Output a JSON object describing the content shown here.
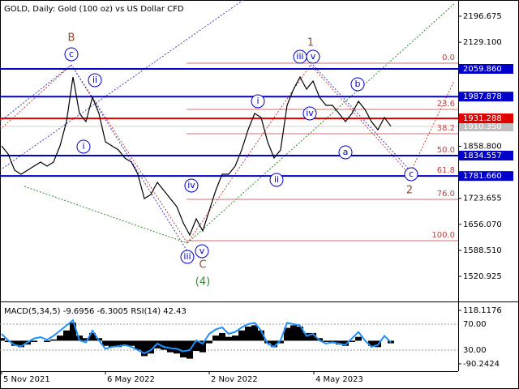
{
  "chart_data": [
    {
      "type": "line",
      "title": "GOLD, Daily:  Gold (100 oz) vs US Dollar CFD",
      "x": [
        2,
        10,
        18,
        26,
        34,
        42,
        50,
        58,
        66,
        74,
        82,
        90,
        98,
        106,
        114,
        122,
        130,
        138,
        146,
        154,
        162,
        170,
        178,
        186,
        194,
        202,
        210,
        218,
        226,
        234,
        242,
        250,
        258,
        266,
        274,
        282,
        290,
        298,
        306,
        314,
        322,
        330,
        338,
        346,
        354,
        362,
        370,
        378,
        386,
        394,
        402,
        410,
        418,
        426,
        434,
        442,
        450,
        458,
        466,
        474,
        482
      ],
      "series": [
        {
          "color": "#000000",
          "values": [
            1859.9,
            1838.8,
            1796.8,
            1786.2,
            1796.8,
            1807.3,
            1817.8,
            1807.3,
            1817.8,
            1859.9,
            1923.0,
            2038.8,
            1944.1,
            1923.0,
            1986.2,
            1944.1,
            1870.4,
            1859.9,
            1849.4,
            1828.3,
            1817.8,
            1786.2,
            1723.1,
            1733.6,
            1765.2,
            1744.1,
            1723.1,
            1702.0,
            1659.9,
            1628.3,
            1670.5,
            1638.9,
            1691.5,
            1744.1,
            1786.2,
            1786.2,
            1807.3,
            1849.4,
            1902.0,
            1944.1,
            1933.6,
            1870.4,
            1828.3,
            1849.4,
            1965.2,
            2007.2,
            2038.8,
            2007.2,
            2028.3,
            1986.2,
            1965.2,
            1965.2,
            1944.1,
            1923.0,
            1944.1,
            1975.7,
            1954.6,
            1923.0,
            1902.0,
            1933.6,
            1911.0
          ]
        }
      ],
      "xlim": [
        0,
        565
      ],
      "ylim": [
        1455.7,
        2238.8
      ],
      "yticks": [
        {
          "value": 2196.675,
          "label": "2196.675"
        },
        {
          "value": 2129.1,
          "label": "2129.100"
        },
        {
          "value": 1858.8,
          "label": "1858.800"
        },
        {
          "value": 1723.655,
          "label": "1723.655"
        },
        {
          "value": 1656.07,
          "label": "1656.070"
        },
        {
          "value": 1588.51,
          "label": "1588.510"
        },
        {
          "value": 1520.925,
          "label": "1520.925"
        }
      ],
      "levels": [
        {
          "value": 2059.86,
          "label": "2059.860",
          "color": "#0000c8"
        },
        {
          "value": 1987.878,
          "label": "1987.878",
          "color": "#0000c8"
        },
        {
          "value": 1931.288,
          "label": "1931.288",
          "color": "#e00000"
        },
        {
          "value": 1834.557,
          "label": "1834.557",
          "color": "#0000c8"
        },
        {
          "value": 1781.66,
          "label": "1781.660",
          "color": "#0000c8"
        }
      ],
      "current_price": {
        "value": 1910.35,
        "label": "1910.350",
        "color": "#c0c0c0"
      },
      "fib_levels": [
        {
          "label": "0.0",
          "price": 2074.6
        },
        {
          "label": "23.6",
          "price": 1954.6
        },
        {
          "label": "38.2",
          "price": 1891.5
        },
        {
          "label": "50.0",
          "price": 1834.6
        },
        {
          "label": "61.8",
          "price": 1781.7
        },
        {
          "label": "76.0",
          "price": 1720.9
        },
        {
          "label": "100.0",
          "price": 1613.6
        }
      ],
      "fib_color": "#c04040",
      "annotations": [
        {
          "text": "B",
          "x": 88,
          "y": 2139.9,
          "color": "#a0442c",
          "circle": false
        },
        {
          "text": "c",
          "x": 88,
          "y": 2097.8,
          "color": "#0000c8",
          "circle": true
        },
        {
          "text": "ii",
          "x": 117,
          "y": 2030.4,
          "color": "#0000c8",
          "circle": true
        },
        {
          "text": "i",
          "x": 103,
          "y": 1857.8,
          "color": "#0000c8",
          "circle": true
        },
        {
          "text": "iv",
          "x": 236,
          "y": 1756.8,
          "color": "#0000c8",
          "circle": true
        },
        {
          "text": "iii",
          "x": 231,
          "y": 1571.5,
          "color": "#0000c8",
          "circle": true
        },
        {
          "text": "v",
          "x": 249,
          "y": 1586.2,
          "color": "#0000c8",
          "circle": true
        },
        {
          "text": "C",
          "x": 250,
          "y": 1550.5,
          "color": "#a0442c",
          "circle": false
        },
        {
          "text": "(4)",
          "x": 250,
          "y": 1506.3,
          "color": "#2e8b2e",
          "circle": false
        },
        {
          "text": "1",
          "x": 383,
          "y": 2127.2,
          "color": "#a0442c",
          "circle": false
        },
        {
          "text": "iii",
          "x": 370,
          "y": 2091.4,
          "color": "#0000c8",
          "circle": true
        },
        {
          "text": "v",
          "x": 386,
          "y": 2091.4,
          "color": "#0000c8",
          "circle": true
        },
        {
          "text": "iv",
          "x": 382,
          "y": 1944.1,
          "color": "#0000c8",
          "circle": true
        },
        {
          "text": "i",
          "x": 318,
          "y": 1975.7,
          "color": "#0000c8",
          "circle": true
        },
        {
          "text": "ii",
          "x": 341,
          "y": 1771.5,
          "color": "#0000c8",
          "circle": true
        },
        {
          "text": "a",
          "x": 426,
          "y": 1843.1,
          "color": "#0000c8",
          "circle": true
        },
        {
          "text": "b",
          "x": 441,
          "y": 2019.9,
          "color": "#0000c8",
          "circle": true
        },
        {
          "text": "c",
          "x": 507,
          "y": 1786.2,
          "color": "#0000c8",
          "circle": true
        },
        {
          "text": "2",
          "x": 505,
          "y": 1744.1,
          "color": "#a0442c",
          "circle": false
        }
      ]
    },
    {
      "type": "macd",
      "title": "MACD(5,34,5) -9.6956 -6.3005 RSI(14) 42.43",
      "x": [
        2,
        10,
        18,
        26,
        34,
        42,
        50,
        58,
        66,
        74,
        82,
        90,
        98,
        106,
        114,
        122,
        130,
        138,
        146,
        154,
        162,
        170,
        178,
        186,
        194,
        202,
        210,
        218,
        226,
        234,
        242,
        250,
        258,
        266,
        274,
        282,
        290,
        298,
        306,
        314,
        322,
        330,
        338,
        346,
        354,
        362,
        370,
        378,
        386,
        394,
        402,
        410,
        418,
        426,
        434,
        442,
        450,
        458,
        466,
        474,
        482
      ],
      "xlim": [
        0,
        565
      ],
      "xticks": [
        {
          "value": 2,
          "label": "5 Nov 2021"
        },
        {
          "value": 130,
          "label": "6 May 2022"
        },
        {
          "value": 258,
          "label": "2 Nov 2022"
        },
        {
          "value": 387,
          "label": "4 May 2023"
        }
      ],
      "series": [
        {
          "color": "#000000",
          "values": [
            10,
            -5,
            -20,
            -25,
            -15,
            -5,
            0,
            -5,
            5,
            20,
            40,
            70,
            20,
            10,
            30,
            10,
            -20,
            -25,
            -25,
            -20,
            -20,
            -35,
            -60,
            -50,
            -30,
            -35,
            -45,
            -50,
            -65,
            -70,
            -40,
            -45,
            -10,
            20,
            30,
            15,
            20,
            40,
            55,
            60,
            40,
            -10,
            -25,
            -10,
            50,
            60,
            55,
            30,
            30,
            10,
            -5,
            -10,
            -15,
            -20,
            -5,
            15,
            0,
            -20,
            -25,
            0,
            -10
          ]
        },
        {
          "color": "#1e90ff",
          "axis": "y2",
          "values": [
            55,
            45,
            38,
            36,
            42,
            48,
            50,
            46,
            52,
            60,
            68,
            76,
            45,
            42,
            60,
            45,
            32,
            35,
            36,
            38,
            35,
            30,
            25,
            30,
            40,
            35,
            33,
            32,
            28,
            30,
            45,
            40,
            55,
            62,
            65,
            55,
            58,
            65,
            70,
            72,
            60,
            40,
            35,
            45,
            72,
            70,
            68,
            52,
            55,
            45,
            40,
            42,
            40,
            38,
            48,
            58,
            45,
            35,
            38,
            52,
            42
          ]
        }
      ],
      "ylim": [
        -90.2424,
        118.1176
      ],
      "yticks": [
        118.1176,
        -90.2424
      ],
      "y2lim": [
        0,
        100
      ],
      "y2ticks": [
        {
          "value": 70,
          "label": "70.00"
        },
        {
          "value": 30,
          "label": "30.00"
        }
      ],
      "grid": true
    }
  ]
}
